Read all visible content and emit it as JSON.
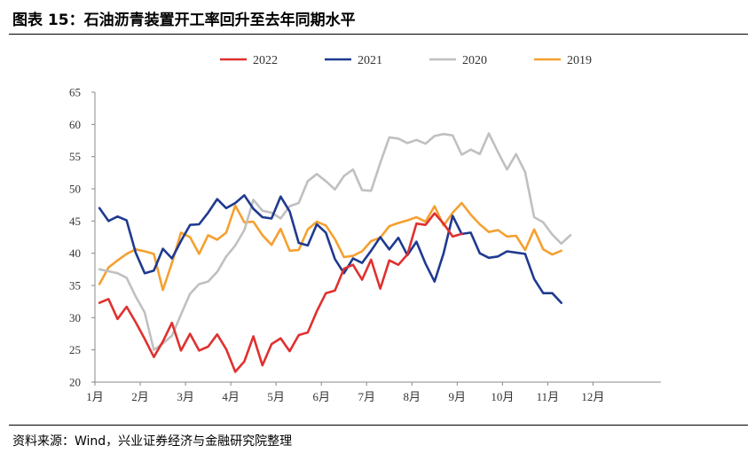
{
  "title": "图表 15：石油沥青装置开工率回升至去年同期水平",
  "source": "资料来源：Wind，兴业证券经济与金融研究院整理",
  "chart_data": {
    "type": "line",
    "title": "石油沥青装置开工率回升至去年同期水平",
    "xlabel": "",
    "ylabel": "",
    "ylim": [
      20,
      65
    ],
    "yticks": [
      20,
      25,
      30,
      35,
      40,
      45,
      50,
      55,
      60,
      65
    ],
    "xlim": [
      0,
      12.5
    ],
    "month_ticks": [
      {
        "x": 0,
        "label": "1月"
      },
      {
        "x": 1,
        "label": "2月"
      },
      {
        "x": 2,
        "label": "3月"
      },
      {
        "x": 3,
        "label": "4月"
      },
      {
        "x": 4,
        "label": "5月"
      },
      {
        "x": 5,
        "label": "6月"
      },
      {
        "x": 6,
        "label": "7月"
      },
      {
        "x": 7,
        "label": "8月"
      },
      {
        "x": 8,
        "label": "9月"
      },
      {
        "x": 9,
        "label": "10月"
      },
      {
        "x": 10,
        "label": "11月"
      },
      {
        "x": 11,
        "label": "12月"
      }
    ],
    "legend_position": "top-center",
    "series": [
      {
        "name": "2022",
        "color": "#e03030",
        "x_start": 0.1,
        "x_step": 0.2,
        "values": [
          32.3,
          32.9,
          29.8,
          31.7,
          29.3,
          26.7,
          23.9,
          26.3,
          29.2,
          24.9,
          27.5,
          24.9,
          25.5,
          27.4,
          25.1,
          21.6,
          23.2,
          27.1,
          22.6,
          25.9,
          26.8,
          24.8,
          27.3,
          27.7,
          31.0,
          33.8,
          34.2,
          37.6,
          38.2,
          35.9,
          39.0,
          34.5,
          38.9,
          38.2,
          39.8,
          44.6,
          44.4,
          46.2,
          44.6,
          42.6,
          43.0
        ]
      },
      {
        "name": "2021",
        "color": "#1f3a8f",
        "x_start": 0.1,
        "x_step": 0.2,
        "values": [
          47.0,
          45.0,
          45.7,
          45.1,
          40.1,
          36.9,
          37.3,
          40.7,
          39.2,
          41.9,
          44.4,
          44.5,
          46.3,
          48.4,
          47.0,
          47.8,
          49.0,
          46.9,
          45.6,
          45.4,
          48.8,
          46.5,
          41.6,
          41.2,
          44.5,
          43.2,
          39.1,
          36.9,
          39.2,
          38.5,
          40.4,
          42.5,
          40.6,
          42.4,
          39.7,
          41.8,
          38.4,
          35.6,
          40.0,
          45.8,
          43.0,
          43.2,
          40.0,
          39.3,
          39.5,
          40.3,
          40.1,
          39.9,
          36.0,
          33.8,
          33.8,
          32.3
        ]
      },
      {
        "name": "2020",
        "color": "#c0c0c0",
        "x_start": 0.1,
        "x_step": 0.2,
        "values": [
          37.5,
          37.2,
          36.9,
          36.2,
          33.3,
          30.8,
          25.0,
          26.0,
          27.2,
          30.5,
          33.7,
          35.2,
          35.6,
          37.1,
          39.5,
          41.2,
          43.6,
          48.3,
          46.6,
          46.3,
          45.4,
          47.3,
          47.8,
          51.2,
          52.3,
          51.2,
          49.9,
          52.0,
          53.0,
          49.8,
          49.7,
          54.0,
          58.0,
          57.8,
          57.1,
          57.6,
          57.0,
          58.2,
          58.5,
          58.3,
          55.3,
          56.1,
          55.4,
          58.6,
          55.7,
          53.0,
          55.4,
          52.6,
          45.6,
          44.8,
          42.9,
          41.5,
          42.8
        ]
      },
      {
        "name": "2019",
        "color": "#f5a030",
        "x_start": 0.1,
        "x_step": 0.2,
        "values": [
          35.2,
          37.8,
          38.9,
          39.9,
          40.6,
          40.3,
          39.9,
          34.3,
          38.5,
          43.2,
          42.5,
          39.9,
          42.8,
          42.1,
          43.2,
          47.4,
          44.8,
          44.9,
          42.8,
          41.3,
          43.8,
          40.4,
          40.5,
          43.7,
          44.9,
          44.3,
          42.2,
          39.4,
          39.6,
          40.3,
          41.9,
          42.4,
          44.2,
          44.7,
          45.1,
          45.6,
          44.9,
          47.3,
          44.3,
          46.3,
          47.8,
          46.0,
          44.5,
          43.3,
          43.6,
          42.6,
          42.7,
          40.5,
          43.7,
          40.6,
          39.8,
          40.4
        ]
      }
    ]
  }
}
